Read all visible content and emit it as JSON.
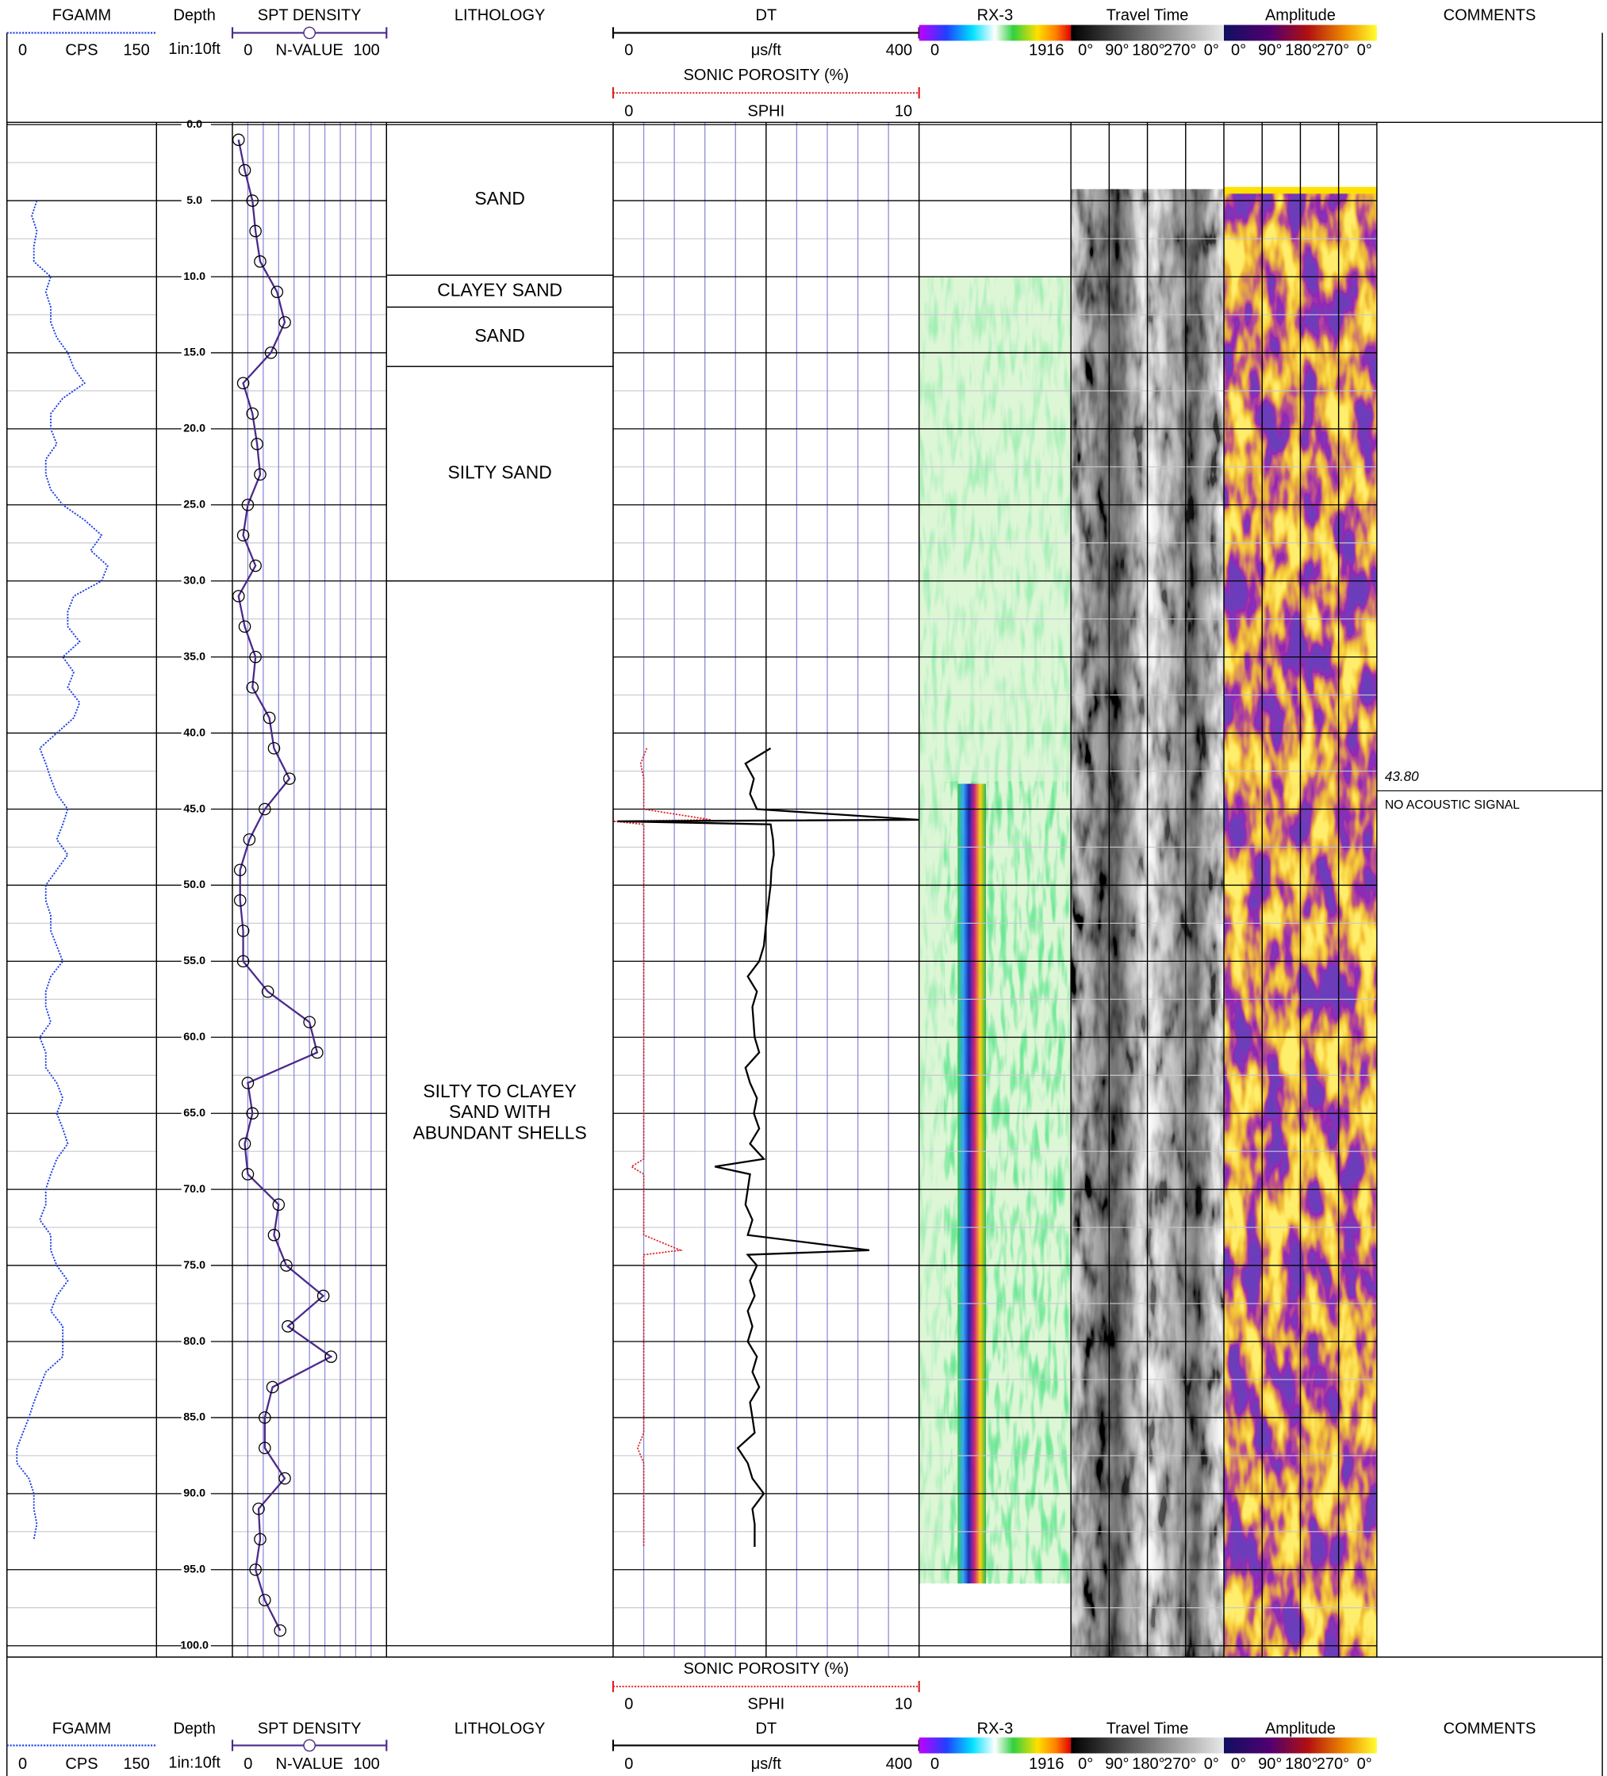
{
  "chart_data": {
    "type": "well-log",
    "depth": {
      "title": "Depth",
      "scale": "1in:10ft",
      "ylim": [
        0,
        100
      ],
      "yticks": [
        {
          "value": 0,
          "label": "0.0"
        },
        {
          "value": 5,
          "label": "5.0"
        },
        {
          "value": 10,
          "label": "10.0"
        },
        {
          "value": 15,
          "label": "15.0"
        },
        {
          "value": 20,
          "label": "20.0"
        },
        {
          "value": 25,
          "label": "25.0"
        },
        {
          "value": 30,
          "label": "30.0"
        },
        {
          "value": 35,
          "label": "35.0"
        },
        {
          "value": 40,
          "label": "40.0"
        },
        {
          "value": 45,
          "label": "45.0"
        },
        {
          "value": 50,
          "label": "50.0"
        },
        {
          "value": 55,
          "label": "55.0"
        },
        {
          "value": 60,
          "label": "60.0"
        },
        {
          "value": 65,
          "label": "65.0"
        },
        {
          "value": 70,
          "label": "70.0"
        },
        {
          "value": 75,
          "label": "75.0"
        },
        {
          "value": 80,
          "label": "80.0"
        },
        {
          "value": 85,
          "label": "85.0"
        },
        {
          "value": 90,
          "label": "90.0"
        },
        {
          "value": 95,
          "label": "95.0"
        },
        {
          "value": 100,
          "label": "100.0"
        }
      ],
      "minor_yticks": [
        2.5,
        7.5,
        12.5,
        17.5,
        22.5,
        27.5,
        32.5,
        37.5,
        42.5,
        47.5,
        52.5,
        57.5,
        62.5,
        67.5,
        72.5,
        77.5,
        82.5,
        87.5,
        92.5,
        97.5
      ]
    },
    "tracks": {
      "fgamm": {
        "title": "FGAMM",
        "unit": "CPS",
        "xlim": [
          0,
          150
        ],
        "color": "#1a3fe6",
        "depth": [
          5,
          6,
          7,
          8,
          9,
          10,
          11,
          12,
          13,
          14,
          15,
          16,
          17,
          18,
          19,
          20,
          21,
          22,
          23,
          24,
          25,
          26,
          27,
          28,
          29,
          30,
          31,
          32,
          33,
          34,
          35,
          36,
          37,
          38,
          39,
          40,
          41,
          42,
          43,
          44,
          45,
          46,
          47,
          48,
          49,
          50,
          51,
          52,
          53,
          54,
          55,
          56,
          57,
          58,
          59,
          60,
          61,
          62,
          63,
          64,
          65,
          66,
          67,
          68,
          69,
          70,
          71,
          72,
          73,
          74,
          75,
          76,
          77,
          78,
          79,
          80,
          81,
          82,
          83,
          84,
          85,
          86,
          87,
          88,
          89,
          90,
          91,
          92,
          93
        ],
        "values": [
          30,
          25,
          30,
          27,
          27,
          44,
          39,
          44,
          44,
          50,
          61,
          67,
          78,
          56,
          44,
          44,
          50,
          39,
          39,
          44,
          56,
          78,
          95,
          84,
          101,
          95,
          67,
          61,
          61,
          73,
          56,
          67,
          61,
          73,
          67,
          50,
          33,
          39,
          44,
          50,
          61,
          56,
          50,
          61,
          50,
          39,
          39,
          44,
          44,
          50,
          56,
          44,
          39,
          39,
          44,
          33,
          39,
          39,
          50,
          56,
          50,
          56,
          61,
          50,
          44,
          39,
          39,
          33,
          44,
          44,
          50,
          61,
          50,
          44,
          56,
          56,
          56,
          39,
          33,
          27,
          22,
          16,
          10,
          10,
          22,
          27,
          27,
          30,
          27
        ]
      },
      "spt": {
        "title": "SPT DENSITY",
        "unit": "N-VALUE",
        "xlim": [
          0,
          100
        ],
        "color": "#4b2a8a",
        "gridlines": [
          10,
          20,
          30,
          40,
          50,
          60,
          70,
          80,
          90
        ],
        "depth": [
          1,
          3,
          5,
          7,
          9,
          11,
          13,
          15,
          17,
          19,
          21,
          23,
          25,
          27,
          29,
          31,
          33,
          35,
          37,
          39,
          41,
          43,
          45,
          47,
          49,
          51,
          53,
          55,
          57,
          59,
          61,
          63,
          65,
          67,
          69,
          71,
          73,
          75,
          77,
          79,
          81,
          83,
          85,
          87,
          89,
          91,
          93,
          95,
          97,
          99
        ],
        "values": [
          4,
          8,
          13,
          15,
          18,
          29,
          34,
          25,
          7,
          13,
          16,
          18,
          10,
          7,
          15,
          4,
          8,
          15,
          13,
          24,
          27,
          37,
          21,
          11,
          5,
          5,
          7,
          7,
          23,
          50,
          55,
          10,
          13,
          8,
          10,
          30,
          27,
          35,
          59,
          36,
          64,
          26,
          21,
          21,
          34,
          17,
          18,
          15,
          21,
          31
        ]
      },
      "lithology": {
        "title": "LITHOLOGY",
        "layers": [
          {
            "label": [
              "SAND"
            ],
            "top": 0,
            "bottom": 9.9
          },
          {
            "label": [
              "CLAYEY SAND"
            ],
            "top": 9.9,
            "bottom": 12
          },
          {
            "label": [
              "SAND"
            ],
            "top": 12,
            "bottom": 15.9
          },
          {
            "label": [
              "SILTY SAND"
            ],
            "top": 15.9,
            "bottom": 30
          },
          {
            "label": [
              "SILTY TO CLAYEY",
              "SAND WITH",
              "ABUNDANT SHELLS"
            ],
            "top": 30,
            "bottom": 100
          }
        ]
      },
      "dt": {
        "title": "DT",
        "unit": "μs/ft",
        "xlim": [
          0,
          400
        ],
        "color": "#000000",
        "depth": [
          41,
          42,
          43,
          44,
          45,
          45.7,
          45.8,
          46,
          47,
          48,
          49,
          50,
          52,
          54,
          55,
          56,
          57,
          58,
          60,
          61,
          62,
          63,
          64,
          65,
          66,
          67,
          68,
          68.5,
          69,
          70,
          71,
          72,
          73,
          74,
          74.3,
          75,
          76,
          77,
          78,
          79,
          80,
          81,
          82,
          83,
          84,
          85,
          86,
          87,
          88,
          89,
          90,
          91,
          92,
          93,
          93.5
        ],
        "values": [
          206,
          173,
          184,
          179,
          188,
          400,
          6,
          206,
          209,
          210,
          207,
          206,
          201,
          197,
          191,
          176,
          188,
          182,
          185,
          191,
          173,
          179,
          188,
          184,
          191,
          179,
          197,
          133,
          179,
          176,
          173,
          182,
          176,
          335,
          176,
          188,
          179,
          185,
          176,
          182,
          176,
          188,
          182,
          191,
          179,
          182,
          185,
          163,
          176,
          182,
          197,
          182,
          185,
          185,
          185
        ]
      },
      "sphi": {
        "title": "SONIC POROSITY (%)",
        "name": "SPHI",
        "xlim": [
          0,
          10
        ],
        "color": "#e02020",
        "gridlines": [
          1,
          2,
          3,
          4,
          5,
          6,
          7,
          8,
          9
        ],
        "depth": [
          41,
          42,
          43,
          44,
          45,
          45.7,
          45.8,
          46,
          47,
          48,
          49,
          50,
          52,
          54,
          55,
          56,
          57,
          58,
          60,
          61,
          62,
          63,
          64,
          65,
          66,
          67,
          68,
          68.5,
          69,
          70,
          71,
          72,
          73,
          74,
          74.3,
          75,
          76,
          77,
          78,
          79,
          80,
          81,
          82,
          83,
          84,
          85,
          86,
          87,
          88,
          89,
          90,
          91,
          92,
          93,
          93.5
        ],
        "values": [
          1.1,
          0.9,
          1,
          1,
          1,
          3.2,
          0,
          1,
          1,
          1,
          1,
          1,
          1,
          1,
          1,
          1,
          1,
          1,
          1,
          1,
          1,
          1,
          1,
          1,
          1,
          1,
          1,
          0.6,
          1,
          1,
          1,
          1,
          1,
          2.2,
          1,
          1,
          1,
          1,
          1,
          1,
          1,
          1,
          1,
          1,
          1,
          1,
          1,
          0.8,
          1,
          1,
          1,
          1,
          1,
          1,
          1
        ]
      },
      "rx3": {
        "title": "RX-3",
        "xlim": [
          0,
          1916
        ]
      },
      "travel_time": {
        "title": "Travel Time",
        "ticks": [
          "0°",
          "90°",
          "180°",
          "270°",
          "0°"
        ]
      },
      "amplitude": {
        "title": "Amplitude",
        "ticks": [
          "0°",
          "90°",
          "180°",
          "270°",
          "0°"
        ]
      },
      "comments": {
        "title": "COMMENTS",
        "items": [
          {
            "depth": {
              "value": 43.8,
              "label": "43.80"
            },
            "text": "NO ACOUSTIC SIGNAL"
          }
        ]
      }
    }
  }
}
